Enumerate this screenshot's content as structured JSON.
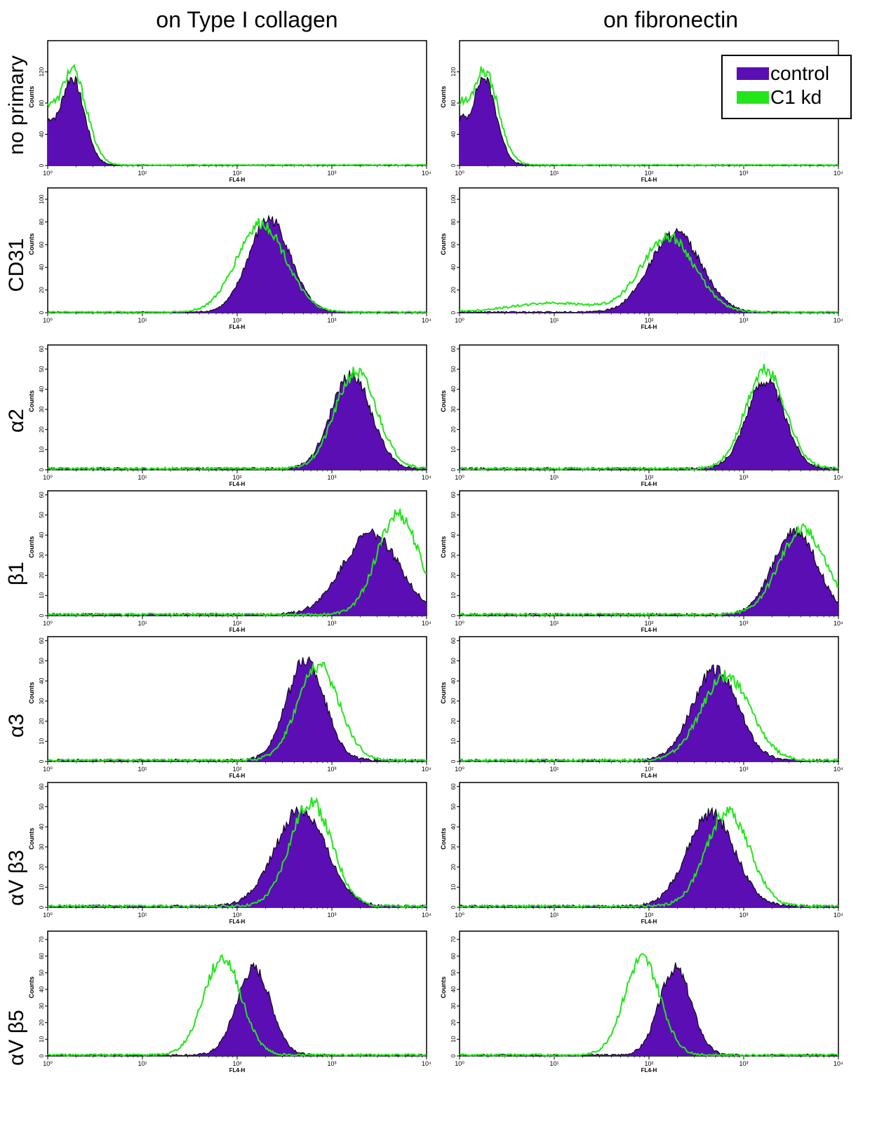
{
  "columns": [
    {
      "title": "on Type I collagen"
    },
    {
      "title": "on fibronectin"
    }
  ],
  "rows": [
    {
      "label": "no primary"
    },
    {
      "label": "CD31"
    },
    {
      "label": "α2"
    },
    {
      "label": "β1"
    },
    {
      "label": "α3"
    },
    {
      "label": "αV β3"
    },
    {
      "label": "αV β5"
    }
  ],
  "legend": [
    {
      "label": "control",
      "color": "#5b0eb4"
    },
    {
      "label": "C1 kd",
      "color": "#22e61a"
    }
  ],
  "colors": {
    "control": "#5b0eb4",
    "kd": "#22e61a",
    "outline": "#000000"
  },
  "chart_data": [
    {
      "type": "area",
      "row": "no primary",
      "column": "on Type I collagen",
      "xlabel": "FL4-H",
      "ylabel": "Counts",
      "x_scale": "log",
      "xlim": [
        1,
        10000
      ],
      "ylim": [
        0,
        160
      ],
      "yticks": [
        0,
        40,
        80,
        120
      ],
      "xticks": [
        "10^0",
        "10^1",
        "10^2",
        "10^3",
        "10^4"
      ],
      "series": [
        {
          "name": "control",
          "peak_x": 1.8,
          "peak_y": 112,
          "spread": 0.13,
          "floor": 40,
          "fill": true
        },
        {
          "name": "C1 kd",
          "peak_x": 1.8,
          "peak_y": 122,
          "spread": 0.15,
          "floor": 48,
          "fill": false
        }
      ]
    },
    {
      "type": "area",
      "row": "no primary",
      "column": "on fibronectin",
      "xlabel": "FL4-H",
      "ylabel": "Counts",
      "x_scale": "log",
      "xlim": [
        1,
        10000
      ],
      "ylim": [
        0,
        160
      ],
      "yticks": [
        0,
        40,
        80,
        120
      ],
      "xticks": [
        "10^0",
        "10^1",
        "10^2",
        "10^3",
        "10^4"
      ],
      "series": [
        {
          "name": "control",
          "peak_x": 1.8,
          "peak_y": 112,
          "spread": 0.13,
          "floor": 42,
          "fill": true
        },
        {
          "name": "C1 kd",
          "peak_x": 1.8,
          "peak_y": 122,
          "spread": 0.15,
          "floor": 50,
          "fill": false
        }
      ]
    },
    {
      "type": "area",
      "row": "CD31",
      "column": "on Type I collagen",
      "xlabel": "FL4-H",
      "ylabel": "Counts",
      "x_scale": "log",
      "xlim": [
        1,
        10000
      ],
      "ylim": [
        0,
        110
      ],
      "yticks": [
        0,
        20,
        40,
        60,
        80,
        100
      ],
      "xticks": [
        "10^0",
        "10^1",
        "10^2",
        "10^3",
        "10^4"
      ],
      "series": [
        {
          "name": "control",
          "peak_x": 220,
          "peak_y": 82,
          "spread": 0.22,
          "fill": true
        },
        {
          "name": "C1 kd",
          "peak_x": 180,
          "peak_y": 78,
          "spread": 0.26,
          "fill": false
        }
      ]
    },
    {
      "type": "area",
      "row": "CD31",
      "column": "on fibronectin",
      "xlabel": "FL4-H",
      "ylabel": "Counts",
      "x_scale": "log",
      "xlim": [
        1,
        10000
      ],
      "ylim": [
        0,
        110
      ],
      "yticks": [
        0,
        20,
        40,
        60,
        80,
        100
      ],
      "xticks": [
        "10^0",
        "10^1",
        "10^2",
        "10^3",
        "10^4"
      ],
      "series": [
        {
          "name": "control",
          "peak_x": 190,
          "peak_y": 70,
          "spread": 0.27,
          "fill": true
        },
        {
          "name": "C1 kd",
          "peak_x": 160,
          "peak_y": 66,
          "spread": 0.28,
          "low_bump": 8,
          "fill": false
        }
      ]
    },
    {
      "type": "area",
      "row": "α2",
      "column": "on Type I collagen",
      "xlabel": "FL4-H",
      "ylabel": "Counts",
      "x_scale": "log",
      "xlim": [
        1,
        10000
      ],
      "ylim": [
        0,
        62
      ],
      "yticks": [
        0,
        10,
        20,
        30,
        40,
        50,
        60
      ],
      "xticks": [
        "10^0",
        "10^1",
        "10^2",
        "10^3",
        "10^4"
      ],
      "series": [
        {
          "name": "control",
          "peak_x": 1600,
          "peak_y": 47,
          "spread": 0.21,
          "fill": true
        },
        {
          "name": "C1 kd",
          "peak_x": 1800,
          "peak_y": 48,
          "spread": 0.22,
          "fill": false
        }
      ]
    },
    {
      "type": "area",
      "row": "α2",
      "column": "on fibronectin",
      "xlabel": "FL4-H",
      "ylabel": "Counts",
      "x_scale": "log",
      "xlim": [
        1,
        10000
      ],
      "ylim": [
        0,
        62
      ],
      "yticks": [
        0,
        10,
        20,
        30,
        40,
        50,
        60
      ],
      "xticks": [
        "10^0",
        "10^1",
        "10^2",
        "10^3",
        "10^4"
      ],
      "series": [
        {
          "name": "control",
          "peak_x": 1700,
          "peak_y": 44,
          "spread": 0.2,
          "fill": true
        },
        {
          "name": "C1 kd",
          "peak_x": 1700,
          "peak_y": 49,
          "spread": 0.21,
          "fill": false
        }
      ]
    },
    {
      "type": "area",
      "row": "β1",
      "column": "on Type I collagen",
      "xlabel": "FL4-H",
      "ylabel": "Counts",
      "x_scale": "log",
      "xlim": [
        1,
        10000
      ],
      "ylim": [
        0,
        62
      ],
      "yticks": [
        0,
        10,
        20,
        30,
        40,
        50,
        60
      ],
      "xticks": [
        "10^0",
        "10^1",
        "10^2",
        "10^3",
        "10^4"
      ],
      "series": [
        {
          "name": "control",
          "peak_x": 2600,
          "peak_y": 40,
          "spread": 0.3,
          "fill": true
        },
        {
          "name": "C1 kd",
          "peak_x": 5000,
          "peak_y": 50,
          "spread": 0.22,
          "fill": false
        }
      ]
    },
    {
      "type": "area",
      "row": "β1",
      "column": "on fibronectin",
      "xlabel": "FL4-H",
      "ylabel": "Counts",
      "x_scale": "log",
      "xlim": [
        1,
        10000
      ],
      "ylim": [
        0,
        62
      ],
      "yticks": [
        0,
        10,
        20,
        30,
        40,
        50,
        60
      ],
      "xticks": [
        "10^0",
        "10^1",
        "10^2",
        "10^3",
        "10^4"
      ],
      "series": [
        {
          "name": "control",
          "peak_x": 3500,
          "peak_y": 42,
          "spread": 0.23,
          "fill": true
        },
        {
          "name": "C1 kd",
          "peak_x": 4200,
          "peak_y": 42,
          "spread": 0.25,
          "fill": false
        }
      ]
    },
    {
      "type": "area",
      "row": "α3",
      "column": "on Type I collagen",
      "xlabel": "FL4-H",
      "ylabel": "Counts",
      "x_scale": "log",
      "xlim": [
        1,
        10000
      ],
      "ylim": [
        0,
        62
      ],
      "yticks": [
        0,
        10,
        20,
        30,
        40,
        50,
        60
      ],
      "xticks": [
        "10^0",
        "10^1",
        "10^2",
        "10^3",
        "10^4"
      ],
      "series": [
        {
          "name": "control",
          "peak_x": 530,
          "peak_y": 50,
          "spread": 0.2,
          "fill": true
        },
        {
          "name": "C1 kd",
          "peak_x": 720,
          "peak_y": 47,
          "spread": 0.22,
          "fill": false
        }
      ]
    },
    {
      "type": "area",
      "row": "α3",
      "column": "on fibronectin",
      "xlabel": "FL4-H",
      "ylabel": "Counts",
      "x_scale": "log",
      "xlim": [
        1,
        10000
      ],
      "ylim": [
        0,
        62
      ],
      "yticks": [
        0,
        10,
        20,
        30,
        40,
        50,
        60
      ],
      "xticks": [
        "10^0",
        "10^1",
        "10^2",
        "10^3",
        "10^4"
      ],
      "series": [
        {
          "name": "control",
          "peak_x": 500,
          "peak_y": 45,
          "spread": 0.24,
          "fill": true
        },
        {
          "name": "C1 kd",
          "peak_x": 650,
          "peak_y": 42,
          "spread": 0.26,
          "fill": false
        }
      ]
    },
    {
      "type": "area",
      "row": "αV β3",
      "column": "on Type I collagen",
      "xlabel": "FL4-H",
      "ylabel": "Counts",
      "x_scale": "log",
      "xlim": [
        1,
        10000
      ],
      "ylim": [
        0,
        62
      ],
      "yticks": [
        0,
        10,
        20,
        30,
        40,
        50,
        60
      ],
      "xticks": [
        "10^0",
        "10^1",
        "10^2",
        "10^3",
        "10^4"
      ],
      "series": [
        {
          "name": "control",
          "peak_x": 470,
          "peak_y": 48,
          "spread": 0.27,
          "fill": true
        },
        {
          "name": "C1 kd",
          "peak_x": 600,
          "peak_y": 52,
          "spread": 0.22,
          "fill": false
        }
      ]
    },
    {
      "type": "area",
      "row": "αV β3",
      "column": "on fibronectin",
      "xlabel": "FL4-H",
      "ylabel": "Counts",
      "x_scale": "log",
      "xlim": [
        1,
        10000
      ],
      "ylim": [
        0,
        62
      ],
      "yticks": [
        0,
        10,
        20,
        30,
        40,
        50,
        60
      ],
      "xticks": [
        "10^0",
        "10^1",
        "10^2",
        "10^3",
        "10^4"
      ],
      "series": [
        {
          "name": "control",
          "peak_x": 450,
          "peak_y": 46,
          "spread": 0.25,
          "fill": true
        },
        {
          "name": "C1 kd",
          "peak_x": 680,
          "peak_y": 47,
          "spread": 0.23,
          "fill": false
        }
      ]
    },
    {
      "type": "area",
      "row": "αV β5",
      "column": "on Type I collagen",
      "xlabel": "FL4-H",
      "ylabel": "Counts",
      "x_scale": "log",
      "xlim": [
        1,
        10000
      ],
      "ylim": [
        0,
        75
      ],
      "yticks": [
        0,
        10,
        20,
        30,
        40,
        50,
        60,
        70
      ],
      "xticks": [
        "10^0",
        "10^1",
        "10^2",
        "10^3",
        "10^4"
      ],
      "series": [
        {
          "name": "control",
          "peak_x": 150,
          "peak_y": 52,
          "spread": 0.18,
          "fill": true
        },
        {
          "name": "C1 kd",
          "peak_x": 70,
          "peak_y": 58,
          "spread": 0.2,
          "fill": false
        }
      ]
    },
    {
      "type": "area",
      "row": "αV β5",
      "column": "on fibronectin",
      "xlabel": "FL4-H",
      "ylabel": "Counts",
      "x_scale": "log",
      "xlim": [
        1,
        10000
      ],
      "ylim": [
        0,
        75
      ],
      "yticks": [
        0,
        10,
        20,
        30,
        40,
        50,
        60,
        70
      ],
      "xticks": [
        "10^0",
        "10^1",
        "10^2",
        "10^3",
        "10^4"
      ],
      "series": [
        {
          "name": "control",
          "peak_x": 190,
          "peak_y": 52,
          "spread": 0.17,
          "fill": true
        },
        {
          "name": "C1 kd",
          "peak_x": 85,
          "peak_y": 58,
          "spread": 0.19,
          "fill": false
        }
      ]
    }
  ]
}
